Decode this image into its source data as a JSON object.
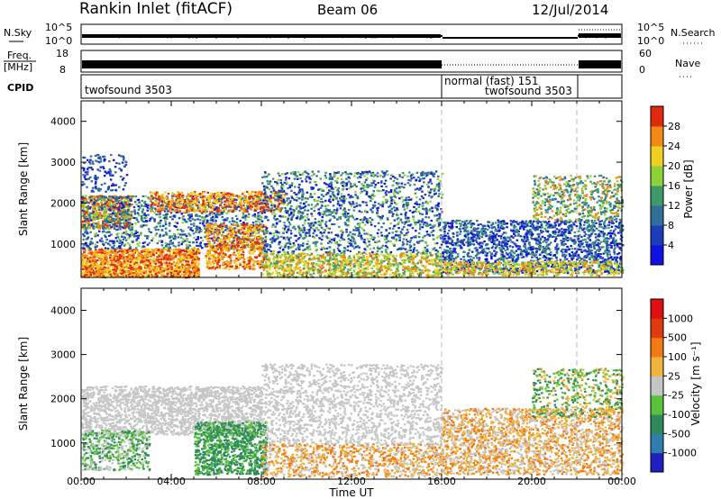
{
  "header": {
    "station": "Rankin Inlet (fitACF)",
    "beam": "Beam 06",
    "date": "12/Jul/2014"
  },
  "strips": {
    "nsky": {
      "left_label": "N.Sky",
      "left_ticks": [
        "10^5",
        "10^0"
      ],
      "right_label": "N.Search",
      "right_ticks": [
        "10^5",
        "10^0"
      ]
    },
    "freq": {
      "left_label_top": "Freq.",
      "left_label_unit": "[MHz]",
      "left_ticks": [
        "18",
        "8"
      ],
      "right_label": "Nave",
      "right_ticks": [
        "60",
        "0"
      ]
    },
    "cpid": {
      "label": "CPID",
      "segments": [
        "twofsound 3503",
        "normal (fast) 151",
        "twofsound 3503"
      ]
    }
  },
  "chart_data": [
    {
      "type": "heatmap",
      "name": "Power",
      "ylabel": "Slant Range [km]",
      "x_range_hours": [
        0,
        24
      ],
      "ylim": [
        180,
        4500
      ],
      "yticks": [
        "1000",
        "2000",
        "3000",
        "4000"
      ],
      "colorbar_label": "Power [dB]",
      "colorbar_ticks": [
        "4",
        "8",
        "12",
        "16",
        "20",
        "24",
        "28"
      ],
      "colorbar_colors": [
        "#1010e0",
        "#1c3cb8",
        "#2f6f9a",
        "#3e9a6a",
        "#8ed23a",
        "#f0d020",
        "#f08a14",
        "#e02a10"
      ],
      "annotations": {
        "vertical_dashed_at_hours": [
          16,
          22
        ]
      }
    },
    {
      "type": "heatmap",
      "name": "Velocity",
      "ylabel": "Slant Range [km]",
      "x_range_hours": [
        0,
        24
      ],
      "ylim": [
        180,
        4500
      ],
      "yticks": [
        "1000",
        "2000",
        "3000",
        "4000"
      ],
      "colorbar_label": "Velocity [m s⁻¹]",
      "colorbar_ticks": [
        "1000",
        "500",
        "100",
        "25",
        "-25",
        "-100",
        "-500",
        "-1000"
      ],
      "colorbar_colors": [
        "#2020c0",
        "#2e7fae",
        "#2d8a5a",
        "#57c23a",
        "#c6c6c6",
        "#f0b43a",
        "#f07a14",
        "#e03a10",
        "#e01010"
      ],
      "xlabel": "Time UT",
      "xticks": [
        "00:00",
        "04:00",
        "08:00",
        "12:00",
        "16:00",
        "20:00",
        "00:00"
      ],
      "annotations": {
        "vertical_dashed_at_hours": [
          16,
          22
        ]
      }
    }
  ]
}
